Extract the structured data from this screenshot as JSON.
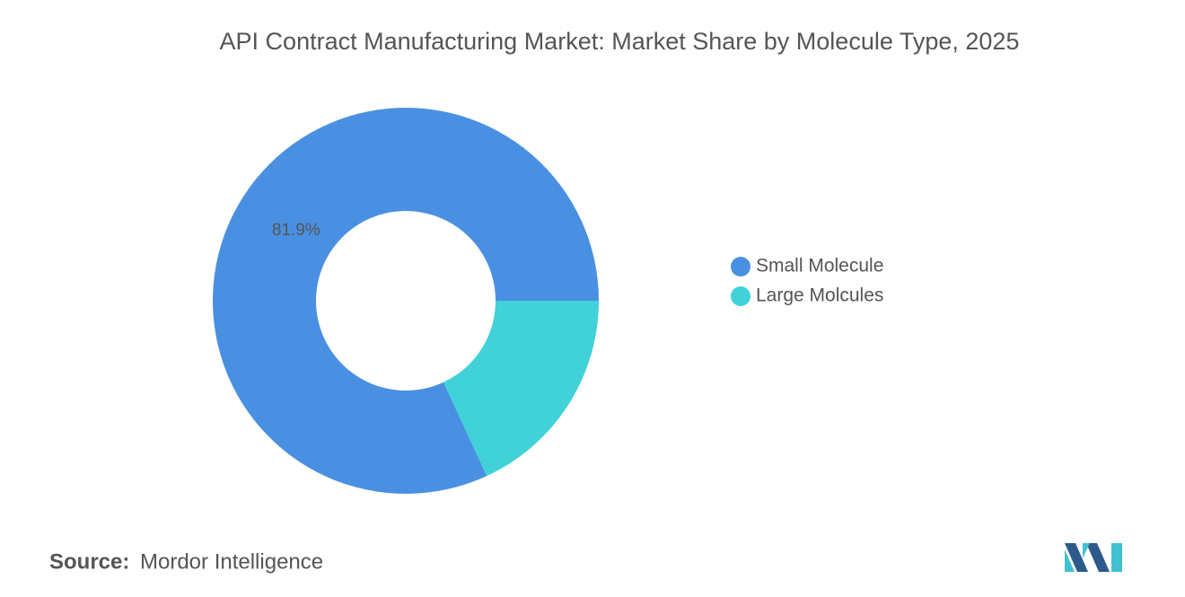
{
  "chart_data": {
    "type": "donut",
    "title": "API Contract Manufacturing Market: Market Share by Molecule Type, 2025",
    "categories": [
      "Small Molecule",
      "Large Molcules"
    ],
    "values": [
      81.9,
      18.1
    ],
    "value_labels": [
      "81.9%",
      null
    ],
    "colors": [
      "#4a90e2",
      "#41d1d9"
    ],
    "legend": "right",
    "source_label": "Source:",
    "source": "Mordor Intelligence"
  }
}
